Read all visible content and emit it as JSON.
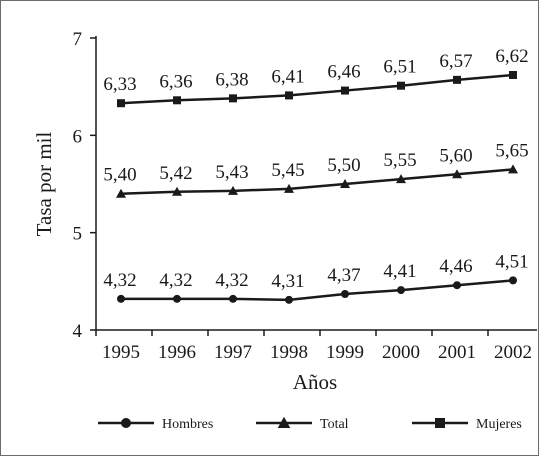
{
  "chart_data": {
    "type": "line",
    "xlabel": "Años",
    "ylabel": "Tasa por mil",
    "ylim": [
      4,
      7
    ],
    "yticks": [
      "4",
      "5",
      "6",
      "7"
    ],
    "categories": [
      "1995",
      "1996",
      "1997",
      "1998",
      "1999",
      "2000",
      "2001",
      "2002"
    ],
    "series": [
      {
        "name": "Mujeres",
        "marker": "square",
        "values": [
          6.33,
          6.36,
          6.38,
          6.41,
          6.46,
          6.51,
          6.57,
          6.62
        ],
        "labels": [
          "6,33",
          "6,36",
          "6,38",
          "6,41",
          "6,46",
          "6,51",
          "6,57",
          "6,62"
        ]
      },
      {
        "name": "Total",
        "marker": "triangle",
        "values": [
          5.4,
          5.42,
          5.43,
          5.45,
          5.5,
          5.55,
          5.6,
          5.65
        ],
        "labels": [
          "5,40",
          "5,42",
          "5,43",
          "5,45",
          "5,50",
          "5,55",
          "5,60",
          "5,65"
        ]
      },
      {
        "name": "Hombres",
        "marker": "circle",
        "values": [
          4.32,
          4.32,
          4.32,
          4.31,
          4.37,
          4.41,
          4.46,
          4.51
        ],
        "labels": [
          "4,32",
          "4,32",
          "4,32",
          "4,31",
          "4,37",
          "4,41",
          "4,46",
          "4,51"
        ]
      }
    ],
    "legend": {
      "placement": "bottom",
      "order": [
        "Hombres",
        "Total",
        "Mujeres"
      ]
    },
    "grid": false,
    "line_color": "#1a1a1a"
  }
}
